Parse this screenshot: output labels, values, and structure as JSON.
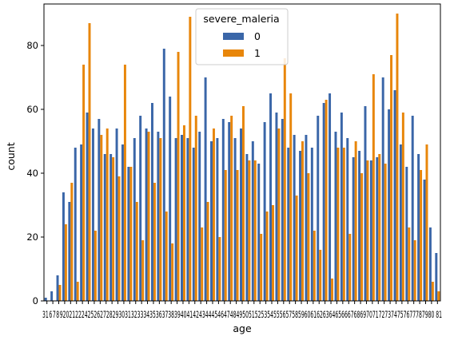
{
  "chart_data": {
    "type": "bar",
    "xlabel": "age",
    "ylabel": "count",
    "ylim": [
      0,
      93
    ],
    "yticks": [
      0,
      20,
      40,
      60,
      80
    ],
    "grid": false,
    "legend": {
      "title": "severe_maleria",
      "placement": "top-center"
    },
    "x_tick_text": "31 6 7 8 9202122242526272829303132333435363738394041424344454647484950515253545556575859606162636465666768697071727374757677787980 81",
    "categories": [
      "3",
      "16",
      "17",
      "18",
      "19",
      "20",
      "21",
      "22",
      "23",
      "24",
      "25",
      "26",
      "27",
      "28",
      "29",
      "30",
      "31",
      "32",
      "33",
      "34",
      "35",
      "36",
      "37",
      "38",
      "39",
      "40",
      "41",
      "42",
      "43",
      "44",
      "45",
      "46",
      "47",
      "48",
      "49",
      "50",
      "51",
      "52",
      "53",
      "54",
      "55",
      "56",
      "57",
      "58",
      "59",
      "60",
      "61",
      "62",
      "63",
      "64",
      "65",
      "66",
      "67",
      "68",
      "69",
      "70",
      "71",
      "72",
      "73",
      "74",
      "75",
      "76",
      "77",
      "78",
      "79",
      "80",
      "81"
    ],
    "series": [
      {
        "name": "0",
        "color": "#3a66a8",
        "values": [
          1,
          3,
          8,
          34,
          31,
          48,
          49,
          59,
          54,
          57,
          46,
          46,
          54,
          49,
          42,
          51,
          58,
          54,
          62,
          53,
          79,
          64,
          51,
          52,
          51,
          48,
          53,
          70,
          50,
          51,
          57,
          56,
          51,
          54,
          46,
          50,
          43,
          56,
          65,
          59,
          57,
          48,
          52,
          47,
          52,
          48,
          58,
          62,
          65,
          53,
          59,
          51,
          45,
          47,
          61,
          44,
          45,
          70,
          60,
          66,
          49,
          42,
          58,
          46,
          38,
          23,
          15
        ]
      },
      {
        "name": "1",
        "color": "#e8860a",
        "values": [
          0,
          0,
          5,
          24,
          37,
          6,
          74,
          87,
          22,
          52,
          54,
          45,
          39,
          74,
          42,
          31,
          19,
          53,
          37,
          51,
          28,
          18,
          78,
          55,
          89,
          58,
          23,
          31,
          54,
          20,
          41,
          58,
          41,
          61,
          44,
          44,
          21,
          28,
          30,
          54,
          76,
          65,
          33,
          50,
          40,
          22,
          16,
          63,
          7,
          48,
          48,
          21,
          50,
          40,
          44,
          71,
          46,
          43,
          77,
          90,
          59,
          23,
          19,
          41,
          49,
          6,
          3
        ]
      }
    ]
  }
}
